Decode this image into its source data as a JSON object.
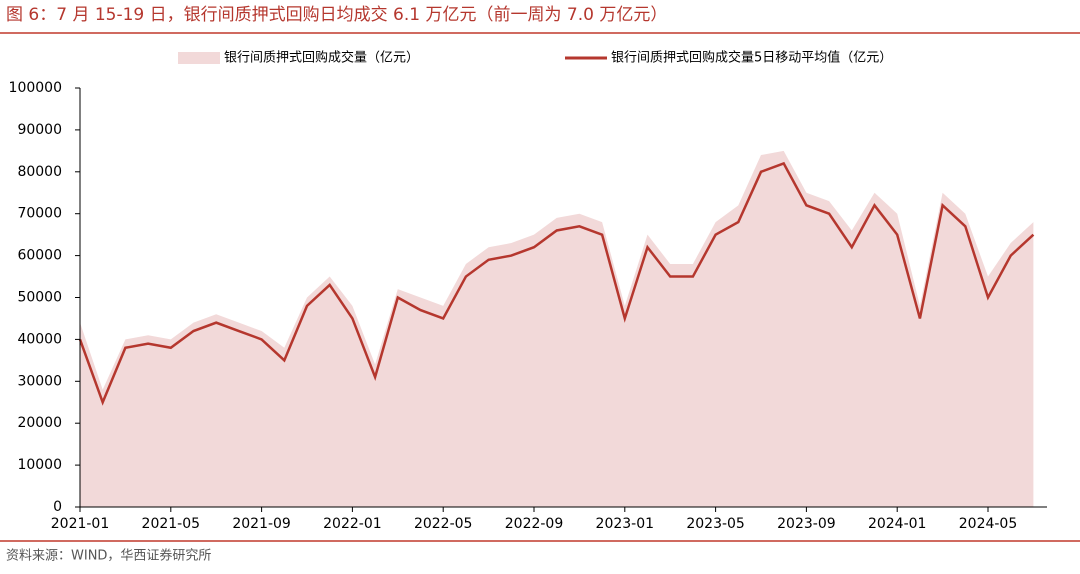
{
  "chart_data": {
    "type": "area-line",
    "title": "图 6：7 月 15-19 日，银行间质押式回购日均成交 6.1 万亿元（前一周为 7.0 万亿元）",
    "source": "资料来源：WIND，华西证券研究所",
    "x": [
      "2021-01",
      "2021-02",
      "2021-03",
      "2021-04",
      "2021-05",
      "2021-06",
      "2021-07",
      "2021-08",
      "2021-09",
      "2021-10",
      "2021-11",
      "2021-12",
      "2022-01",
      "2022-02",
      "2022-03",
      "2022-04",
      "2022-05",
      "2022-06",
      "2022-07",
      "2022-08",
      "2022-09",
      "2022-10",
      "2022-11",
      "2022-12",
      "2023-01",
      "2023-02",
      "2023-03",
      "2023-04",
      "2023-05",
      "2023-06",
      "2023-07",
      "2023-08",
      "2023-09",
      "2023-10",
      "2023-11",
      "2023-12",
      "2024-01",
      "2024-02",
      "2024-03",
      "2024-04",
      "2024-05",
      "2024-06",
      "2024-07"
    ],
    "series": [
      {
        "name": "银行间质押式回购成交量（亿元）",
        "kind": "area",
        "color": "#f2d9d9",
        "values": [
          44000,
          28000,
          40000,
          41000,
          40000,
          44000,
          46000,
          44000,
          42000,
          38000,
          50000,
          55000,
          48000,
          34000,
          52000,
          50000,
          48000,
          58000,
          62000,
          63000,
          65000,
          69000,
          70000,
          68000,
          48000,
          65000,
          58000,
          58000,
          68000,
          72000,
          84000,
          85000,
          75000,
          73000,
          66000,
          75000,
          70000,
          48000,
          75000,
          70000,
          55000,
          63000,
          68000
        ]
      },
      {
        "name": "银行间质押式回购成交量5日移动平均值（亿元）",
        "kind": "line",
        "color": "#b5372e",
        "values": [
          40000,
          25000,
          38000,
          39000,
          38000,
          42000,
          44000,
          42000,
          40000,
          35000,
          48000,
          53000,
          45000,
          31000,
          50000,
          47000,
          45000,
          55000,
          59000,
          60000,
          62000,
          66000,
          67000,
          65000,
          45000,
          62000,
          55000,
          55000,
          65000,
          68000,
          80000,
          82000,
          72000,
          70000,
          62000,
          72000,
          65000,
          45000,
          72000,
          67000,
          50000,
          60000,
          65000
        ]
      }
    ],
    "ylim": [
      0,
      100000
    ],
    "yticks": [
      0,
      10000,
      20000,
      30000,
      40000,
      50000,
      60000,
      70000,
      80000,
      90000,
      100000
    ],
    "xticks": [
      "2021-01",
      "2021-05",
      "2021-09",
      "2022-01",
      "2022-05",
      "2022-09",
      "2023-01",
      "2023-05",
      "2023-09",
      "2024-01",
      "2024-05"
    ]
  }
}
